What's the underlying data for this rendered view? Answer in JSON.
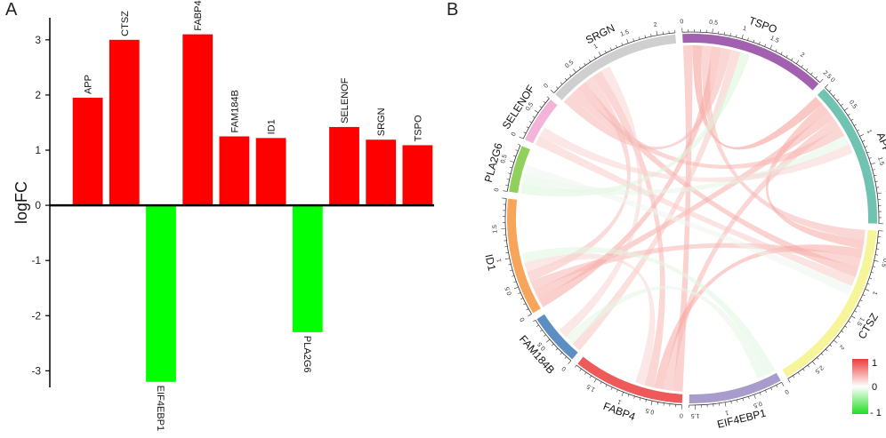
{
  "panels": {
    "a_label": "A",
    "b_label": "B"
  },
  "chart_data": [
    {
      "type": "bar",
      "panel": "A",
      "title": "",
      "xlabel": "",
      "ylabel": "logFC",
      "ylim": [
        -3.3,
        3.4
      ],
      "yticks": [
        -3,
        -2,
        -1,
        0,
        1,
        2,
        3
      ],
      "categories": [
        "APP",
        "CTSZ",
        "EIF4EBP1",
        "FABP4",
        "FAM184B",
        "ID1",
        "PLA2G6",
        "SELENOF",
        "SRGN",
        "TSPO"
      ],
      "values": [
        1.95,
        3.0,
        -3.2,
        3.1,
        1.25,
        1.22,
        -2.3,
        1.42,
        1.19,
        1.09
      ],
      "colors": {
        "positive": "#ff0000",
        "negative": "#00ff00",
        "axis": "#000000"
      }
    },
    {
      "type": "chord",
      "panel": "B",
      "sectors": [
        {
          "name": "TSPO",
          "color": "#a260b0",
          "max": 2.5,
          "ticks": [
            "0",
            "0.5",
            "1",
            "1.5",
            "2",
            "2.5"
          ]
        },
        {
          "name": "APP",
          "color": "#6fc3b0",
          "max": 2.5,
          "ticks": [
            "0",
            "0.5",
            "1",
            "1.5",
            "2",
            "2.5"
          ]
        },
        {
          "name": "CTSZ",
          "color": "#f6f59a",
          "max": 3,
          "ticks": [
            "0",
            "0.5",
            "1",
            "1.5",
            "2",
            "2.5"
          ]
        },
        {
          "name": "EIF4EBP1",
          "color": "#a79ccc",
          "max": 1.6,
          "ticks": [
            "0",
            "0.5",
            "1",
            "1.5"
          ]
        },
        {
          "name": "FABP4",
          "color": "#ee5a5a",
          "max": 1.9,
          "ticks": [
            "0",
            "0.5",
            "1",
            "1.5"
          ]
        },
        {
          "name": "FAM184B",
          "color": "#5b8fc4",
          "max": 0.9,
          "ticks": [
            "0",
            "0.5"
          ]
        },
        {
          "name": "ID1",
          "color": "#f7a55a",
          "max": 2.0,
          "ticks": [
            "0",
            "0.5",
            "1",
            "1.5"
          ]
        },
        {
          "name": "PLA2G6",
          "color": "#8fd15a",
          "max": 0.8,
          "ticks": [
            "0",
            "0.5"
          ]
        },
        {
          "name": "SELENOF",
          "color": "#f4b3d8",
          "max": 0.8,
          "ticks": [
            "0",
            "0.5"
          ]
        },
        {
          "name": "SRGN",
          "color": "#cfcfcf",
          "max": 2.3,
          "ticks": [
            "0",
            "0.5",
            "1",
            "1.5",
            "2"
          ]
        }
      ],
      "links": [
        [
          "TSPO",
          "FABP4",
          0.55
        ],
        [
          "TSPO",
          "APP",
          0.7
        ],
        [
          "TSPO",
          "CTSZ",
          0.5
        ],
        [
          "TSPO",
          "ID1",
          0.6
        ],
        [
          "TSPO",
          "SRGN",
          0.5
        ],
        [
          "TSPO",
          "FAM184B",
          0.4
        ],
        [
          "APP",
          "CTSZ",
          0.6
        ],
        [
          "APP",
          "ID1",
          0.55
        ],
        [
          "APP",
          "FABP4",
          0.5
        ],
        [
          "APP",
          "SRGN",
          0.5
        ],
        [
          "CTSZ",
          "FABP4",
          0.6
        ],
        [
          "CTSZ",
          "ID1",
          0.5
        ],
        [
          "CTSZ",
          "SRGN",
          0.55
        ],
        [
          "SRGN",
          "ID1",
          0.45
        ],
        [
          "SRGN",
          "FABP4",
          0.5
        ],
        [
          "ID1",
          "FABP4",
          0.3
        ],
        [
          "SELENOF",
          "CTSZ",
          0.35
        ],
        [
          "PLA2G6",
          "TSPO",
          -0.4
        ],
        [
          "PLA2G6",
          "APP",
          -0.3
        ],
        [
          "EIF4EBP1",
          "ID1",
          -0.35
        ],
        [
          "EIF4EBP1",
          "FAM184B",
          -0.3
        ],
        [
          "FAM184B",
          "SRGN",
          0.3
        ],
        [
          "SELENOF",
          "APP",
          0.3
        ],
        [
          "PLA2G6",
          "CTSZ",
          -0.2
        ]
      ],
      "legend": {
        "max_label": "1",
        "mid_label": "0",
        "min_label": "- 1",
        "high": "#ee3b3b",
        "mid": "#ffffff",
        "low": "#22dd22"
      }
    }
  ]
}
